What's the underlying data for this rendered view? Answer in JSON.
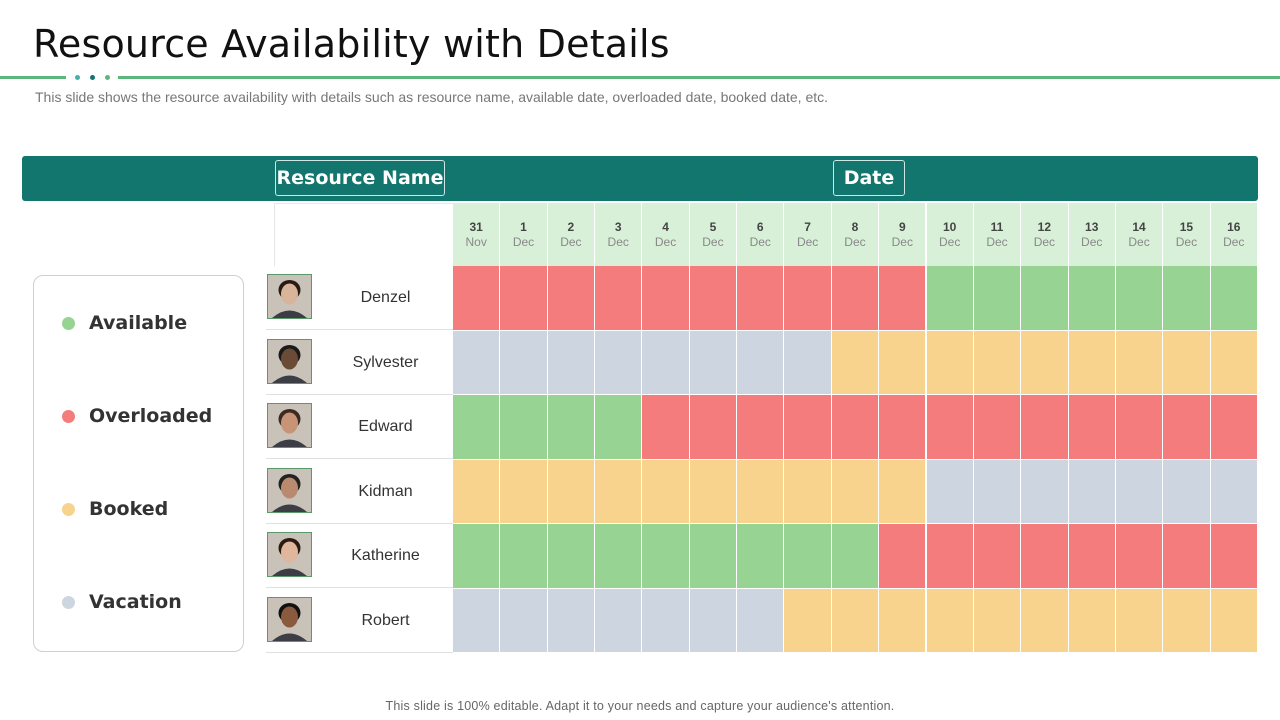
{
  "slide": {
    "title": "Resource Availability with Details",
    "subtitle": "This slide shows the resource availability with details such as resource name, available date, overloaded date, booked date, etc.",
    "footer": "This slide is 100% editable. Adapt it to your needs and capture your audience's attention."
  },
  "header": {
    "resource_label": "Resource Name",
    "date_label": "Date"
  },
  "colors": {
    "available": "#97d493",
    "overloaded": "#f57c7c",
    "booked": "#f8d38e",
    "vacation": "#cdd6e0",
    "header": "#12756e",
    "accent": "#5cb87a"
  },
  "legend": [
    {
      "key": "available",
      "label": "Available"
    },
    {
      "key": "overloaded",
      "label": "Overloaded"
    },
    {
      "key": "booked",
      "label": "Booked"
    },
    {
      "key": "vacation",
      "label": "Vacation"
    }
  ],
  "dates": [
    {
      "day": "31",
      "month": "Nov"
    },
    {
      "day": "1",
      "month": "Dec"
    },
    {
      "day": "2",
      "month": "Dec"
    },
    {
      "day": "3",
      "month": "Dec"
    },
    {
      "day": "4",
      "month": "Dec"
    },
    {
      "day": "5",
      "month": "Dec"
    },
    {
      "day": "6",
      "month": "Dec"
    },
    {
      "day": "7",
      "month": "Dec"
    },
    {
      "day": "8",
      "month": "Dec"
    },
    {
      "day": "9",
      "month": "Dec"
    },
    {
      "day": "10",
      "month": "Dec"
    },
    {
      "day": "11",
      "month": "Dec"
    },
    {
      "day": "12",
      "month": "Dec"
    },
    {
      "day": "13",
      "month": "Dec"
    },
    {
      "day": "14",
      "month": "Dec"
    },
    {
      "day": "15",
      "month": "Dec"
    },
    {
      "day": "16",
      "month": "Dec"
    }
  ],
  "resources": [
    {
      "name": "Denzel",
      "status": [
        "overloaded",
        "overloaded",
        "overloaded",
        "overloaded",
        "overloaded",
        "overloaded",
        "overloaded",
        "overloaded",
        "overloaded",
        "overloaded",
        "available",
        "available",
        "available",
        "available",
        "available",
        "available",
        "available"
      ]
    },
    {
      "name": "Sylvester",
      "status": [
        "vacation",
        "vacation",
        "vacation",
        "vacation",
        "vacation",
        "vacation",
        "vacation",
        "vacation",
        "booked",
        "booked",
        "booked",
        "booked",
        "booked",
        "booked",
        "booked",
        "booked",
        "booked"
      ]
    },
    {
      "name": "Edward",
      "status": [
        "available",
        "available",
        "available",
        "available",
        "overloaded",
        "overloaded",
        "overloaded",
        "overloaded",
        "overloaded",
        "overloaded",
        "overloaded",
        "overloaded",
        "overloaded",
        "overloaded",
        "overloaded",
        "overloaded",
        "overloaded"
      ]
    },
    {
      "name": "Kidman",
      "status": [
        "booked",
        "booked",
        "booked",
        "booked",
        "booked",
        "booked",
        "booked",
        "booked",
        "booked",
        "booked",
        "vacation",
        "vacation",
        "vacation",
        "vacation",
        "vacation",
        "vacation",
        "vacation"
      ]
    },
    {
      "name": "Katherine",
      "status": [
        "available",
        "available",
        "available",
        "available",
        "available",
        "available",
        "available",
        "available",
        "available",
        "overloaded",
        "overloaded",
        "overloaded",
        "overloaded",
        "overloaded",
        "overloaded",
        "overloaded",
        "overloaded"
      ]
    },
    {
      "name": "Robert",
      "status": [
        "vacation",
        "vacation",
        "vacation",
        "vacation",
        "vacation",
        "vacation",
        "vacation",
        "booked",
        "booked",
        "booked",
        "booked",
        "booked",
        "booked",
        "booked",
        "booked",
        "booked",
        "booked"
      ]
    }
  ]
}
